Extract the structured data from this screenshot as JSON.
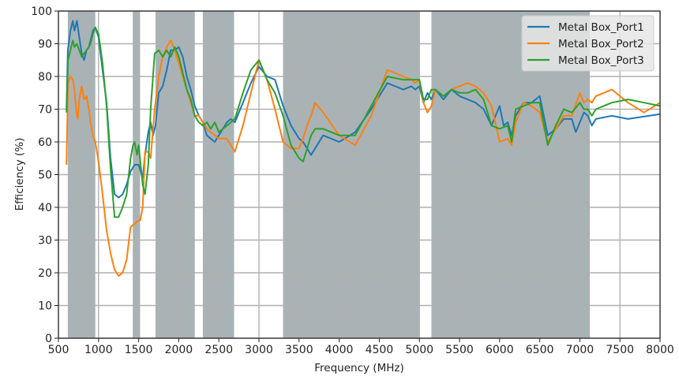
{
  "chart_data": {
    "type": "line",
    "title": "",
    "xlabel": "Frequency (MHz)",
    "ylabel": "Efficiency (%)",
    "xlim": [
      500,
      8000
    ],
    "ylim": [
      0,
      100
    ],
    "xticks": [
      500,
      1000,
      1500,
      2000,
      2500,
      3000,
      3500,
      4000,
      4500,
      5000,
      5500,
      6000,
      6500,
      7000,
      7500,
      8000
    ],
    "yticks": [
      0,
      10,
      20,
      30,
      40,
      50,
      60,
      70,
      80,
      90,
      100
    ],
    "grid": true,
    "legend_position": "upper right",
    "shaded_bands_mhz": [
      [
        617,
        960
      ],
      [
        1427,
        1518
      ],
      [
        1710,
        2200
      ],
      [
        2300,
        2690
      ],
      [
        3300,
        5000
      ],
      [
        5150,
        7125
      ]
    ],
    "shade_color": "#a9b3b6",
    "series": [
      {
        "name": "Metal Box_Port1",
        "color": "#1f77b4",
        "x": [
          600,
          617,
          650,
          680,
          700,
          730,
          760,
          790,
          820,
          850,
          880,
          900,
          930,
          960,
          1000,
          1050,
          1100,
          1150,
          1200,
          1250,
          1300,
          1350,
          1400,
          1450,
          1500,
          1550,
          1580,
          1620,
          1650,
          1680,
          1710,
          1750,
          1800,
          1850,
          1900,
          1950,
          2000,
          2050,
          2100,
          2150,
          2200,
          2250,
          2300,
          2350,
          2400,
          2450,
          2500,
          2550,
          2600,
          2650,
          2700,
          2800,
          2900,
          3000,
          3100,
          3200,
          3300,
          3400,
          3500,
          3550,
          3650,
          3700,
          3800,
          4000,
          4200,
          4400,
          4600,
          4800,
          4900,
          4950,
          5000,
          5050,
          5100,
          5150,
          5200,
          5300,
          5400,
          5500,
          5600,
          5700,
          5800,
          5900,
          5950,
          6000,
          6050,
          6100,
          6150,
          6200,
          6300,
          6400,
          6500,
          6600,
          6700,
          6800,
          6900,
          6950,
          7000,
          7050,
          7100,
          7150,
          7200,
          7400,
          7600,
          8000
        ],
        "y": [
          70,
          88,
          94,
          97,
          94,
          97,
          92,
          87,
          85,
          88,
          89,
          91,
          94,
          95,
          92,
          82,
          72,
          55,
          44,
          43,
          44,
          47,
          51,
          53,
          53,
          49,
          56,
          63,
          66,
          62,
          65,
          75,
          77,
          82,
          88,
          88,
          89,
          86,
          80,
          76,
          71,
          68,
          66,
          62,
          61,
          60,
          62,
          64,
          66,
          67,
          66,
          72,
          78,
          83,
          80,
          79,
          71,
          65,
          61,
          60,
          56,
          58,
          62,
          60,
          63,
          70,
          78,
          76,
          77,
          76,
          77,
          72,
          75,
          73,
          76,
          73,
          76,
          74,
          73,
          72,
          70,
          65,
          68,
          71,
          65,
          66,
          62,
          68,
          72,
          72,
          74,
          62,
          64,
          67,
          67,
          63,
          66,
          69,
          68,
          65,
          67,
          68,
          67,
          68.5
        ]
      },
      {
        "name": "Metal Box_Port2",
        "color": "#ff7f0e",
        "x": [
          600,
          620,
          650,
          680,
          700,
          720,
          740,
          760,
          790,
          820,
          850,
          880,
          900,
          930,
          960,
          1000,
          1050,
          1100,
          1150,
          1200,
          1250,
          1300,
          1350,
          1400,
          1450,
          1500,
          1520,
          1550,
          1580,
          1620,
          1650,
          1700,
          1750,
          1800,
          1850,
          1900,
          1950,
          2000,
          2050,
          2100,
          2150,
          2200,
          2250,
          2300,
          2350,
          2400,
          2450,
          2500,
          2550,
          2600,
          2650,
          2700,
          2800,
          2900,
          3000,
          3100,
          3200,
          3300,
          3400,
          3500,
          3550,
          3600,
          3650,
          3700,
          3800,
          4000,
          4200,
          4400,
          4600,
          4800,
          4900,
          4950,
          5000,
          5050,
          5100,
          5150,
          5200,
          5300,
          5400,
          5500,
          5600,
          5700,
          5800,
          5900,
          6000,
          6100,
          6150,
          6200,
          6300,
          6400,
          6500,
          6600,
          6700,
          6800,
          6900,
          7000,
          7050,
          7100,
          7150,
          7200,
          7400,
          7600,
          7800,
          8000
        ],
        "y": [
          53,
          78,
          80,
          79,
          76,
          70,
          67,
          73,
          77,
          73,
          74,
          70,
          66,
          62,
          60,
          54,
          44,
          33,
          26,
          21,
          19,
          20,
          24,
          34,
          35,
          36,
          36,
          40,
          57,
          57,
          55,
          70,
          80,
          86,
          89,
          91,
          88,
          84,
          80,
          76,
          72,
          68,
          68,
          66,
          64,
          63,
          62,
          61,
          61,
          61,
          59,
          57,
          65,
          75,
          85,
          79,
          70,
          60,
          58,
          58,
          61,
          65,
          68,
          72,
          69,
          62,
          59,
          68,
          82,
          80,
          79,
          78,
          79,
          72,
          69,
          71,
          76,
          74,
          76,
          77,
          78,
          77,
          75,
          71,
          60,
          61,
          59,
          66,
          72,
          71,
          69,
          60,
          64,
          68,
          68,
          75,
          72,
          73,
          72,
          74,
          76,
          72,
          69,
          72
        ]
      },
      {
        "name": "Metal Box_Port3",
        "color": "#2ca02c",
        "x": [
          600,
          620,
          650,
          680,
          700,
          730,
          760,
          790,
          820,
          850,
          880,
          900,
          930,
          960,
          1000,
          1050,
          1100,
          1150,
          1200,
          1250,
          1300,
          1350,
          1400,
          1430,
          1450,
          1480,
          1500,
          1550,
          1580,
          1620,
          1650,
          1700,
          1750,
          1800,
          1850,
          1900,
          1950,
          2000,
          2050,
          2100,
          2150,
          2200,
          2250,
          2300,
          2350,
          2400,
          2450,
          2500,
          2550,
          2600,
          2650,
          2700,
          2800,
          2900,
          3000,
          3100,
          3200,
          3300,
          3400,
          3500,
          3550,
          3600,
          3650,
          3700,
          3800,
          4000,
          4200,
          4400,
          4600,
          4800,
          4900,
          4950,
          5000,
          5050,
          5100,
          5150,
          5200,
          5300,
          5400,
          5500,
          5600,
          5700,
          5800,
          5900,
          6000,
          6100,
          6150,
          6200,
          6300,
          6400,
          6500,
          6600,
          6700,
          6800,
          6900,
          7000,
          7050,
          7100,
          7150,
          7200,
          7400,
          7600,
          7800,
          8000
        ],
        "y": [
          69,
          85,
          88,
          91,
          89,
          90,
          88,
          86,
          87,
          88,
          89,
          90,
          93,
          95,
          93,
          84,
          71,
          52,
          37,
          37,
          40,
          44,
          55,
          59,
          60,
          56,
          59,
          47,
          44,
          53,
          70,
          87,
          88,
          86,
          88,
          86,
          89,
          86,
          81,
          76,
          73,
          68,
          66,
          65,
          66,
          64,
          66,
          63,
          64,
          65,
          66,
          67,
          75,
          82,
          85,
          79,
          75,
          68,
          59,
          55,
          54,
          58,
          62,
          64,
          64,
          62,
          62,
          71,
          80,
          79,
          79,
          79,
          79,
          73,
          73,
          76,
          76,
          74,
          76,
          75,
          75,
          76,
          73,
          65,
          64,
          65,
          60,
          70,
          71,
          72,
          72,
          59,
          65,
          70,
          69,
          72,
          70,
          70,
          68,
          70,
          72,
          73,
          72,
          71
        ]
      }
    ]
  },
  "legend": {
    "items": [
      {
        "label": "Metal Box_Port1",
        "color": "#1f77b4"
      },
      {
        "label": "Metal Box_Port2",
        "color": "#ff7f0e"
      },
      {
        "label": "Metal Box_Port3",
        "color": "#2ca02c"
      }
    ]
  },
  "axes": {
    "xlabel": "Frequency (MHz)",
    "ylabel": "Efficiency (%)"
  }
}
